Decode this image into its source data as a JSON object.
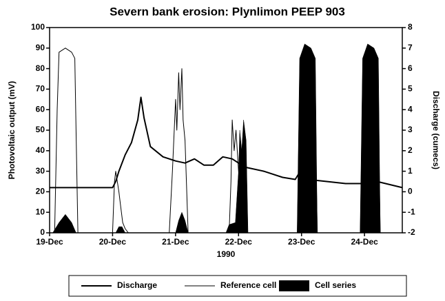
{
  "chart_data": {
    "type": "line",
    "title": "Severn bank erosion: Plynlimon PEEP 903",
    "xlabel": "1990",
    "ylabel": "Photovoltaic output (mV)",
    "y2label": "Discharge (cumecs)",
    "xlim": [
      19,
      24.6
    ],
    "xticks": [
      {
        "value": 19,
        "label": "19-Dec"
      },
      {
        "value": 20,
        "label": "20-Dec"
      },
      {
        "value": 21,
        "label": "21-Dec"
      },
      {
        "value": 22,
        "label": "22-Dec"
      },
      {
        "value": 23,
        "label": "23-Dec"
      },
      {
        "value": 24,
        "label": "24-Dec"
      }
    ],
    "ylim": [
      0,
      100
    ],
    "yticks": [
      0,
      10,
      20,
      30,
      40,
      50,
      60,
      70,
      80,
      90,
      100
    ],
    "y2lim": [
      -2,
      8
    ],
    "y2ticks": [
      -2,
      -1,
      0,
      1,
      2,
      3,
      4,
      5,
      6,
      7,
      8
    ],
    "series": [
      {
        "name": "Discharge",
        "color": "#000000",
        "kind": "line",
        "width": 2,
        "axis": "y2",
        "x": [
          19,
          20,
          20.05,
          20.1,
          20.2,
          20.3,
          20.4,
          20.45,
          20.5,
          20.6,
          20.8,
          21,
          21.15,
          21.3,
          21.45,
          21.6,
          21.75,
          21.9,
          22.1,
          22.4,
          22.7,
          22.9,
          22.98,
          23.1,
          23.4,
          23.7,
          23.95,
          24.05,
          24.2,
          24.6
        ],
        "values": [
          0.2,
          0.2,
          0.5,
          1.0,
          1.8,
          2.4,
          3.5,
          4.6,
          3.6,
          2.2,
          1.7,
          1.5,
          1.4,
          1.6,
          1.3,
          1.3,
          1.7,
          1.6,
          1.2,
          1.0,
          0.7,
          0.6,
          1.0,
          0.6,
          0.5,
          0.4,
          0.4,
          0.8,
          0.5,
          0.2
        ]
      },
      {
        "name": "Reference cell",
        "color": "#000000",
        "kind": "line",
        "width": 1,
        "x": [
          19.0,
          19.08,
          19.12,
          19.15,
          19.25,
          19.35,
          19.4,
          19.42,
          19.45,
          20.0,
          20.03,
          20.05,
          20.1,
          20.12,
          20.16,
          20.2,
          20.25,
          20.9,
          20.95,
          21.0,
          21.02,
          21.05,
          21.07,
          21.1,
          21.12,
          21.15,
          21.2,
          21.85,
          21.88,
          21.9,
          21.93,
          21.96,
          22.0,
          22.05,
          22.1,
          22.95,
          23.0,
          23.1,
          23.2,
          23.25,
          23.95,
          24.0,
          24.1,
          24.2,
          24.25,
          24.6
        ],
        "values": [
          0,
          0,
          60,
          88,
          90,
          88,
          85,
          50,
          0,
          0,
          25,
          30,
          20,
          15,
          5,
          2,
          0,
          0,
          30,
          65,
          50,
          78,
          60,
          80,
          55,
          45,
          0,
          0,
          25,
          55,
          40,
          50,
          30,
          10,
          0,
          0,
          85,
          90,
          85,
          0,
          0,
          85,
          90,
          85,
          0,
          0
        ]
      },
      {
        "name": "Cell series",
        "color": "#000000",
        "kind": "area",
        "x": [
          19.0,
          19.05,
          19.15,
          19.25,
          19.35,
          19.42,
          20.05,
          20.1,
          20.15,
          20.2,
          21.0,
          21.05,
          21.1,
          21.15,
          21.2,
          21.8,
          21.85,
          21.95,
          22.0,
          22.02,
          22.05,
          22.08,
          22.12,
          22.15,
          22.93,
          22.97,
          23.05,
          23.15,
          23.22,
          23.25,
          23.93,
          23.97,
          24.05,
          24.15,
          24.22,
          24.25,
          24.6
        ],
        "values": [
          0,
          0,
          5,
          9,
          5,
          0,
          0,
          3,
          3,
          0,
          0,
          6,
          10,
          6,
          0,
          0,
          4,
          5,
          30,
          50,
          40,
          55,
          45,
          0,
          0,
          85,
          92,
          90,
          85,
          0,
          0,
          85,
          92,
          90,
          85,
          0,
          0
        ]
      }
    ]
  }
}
